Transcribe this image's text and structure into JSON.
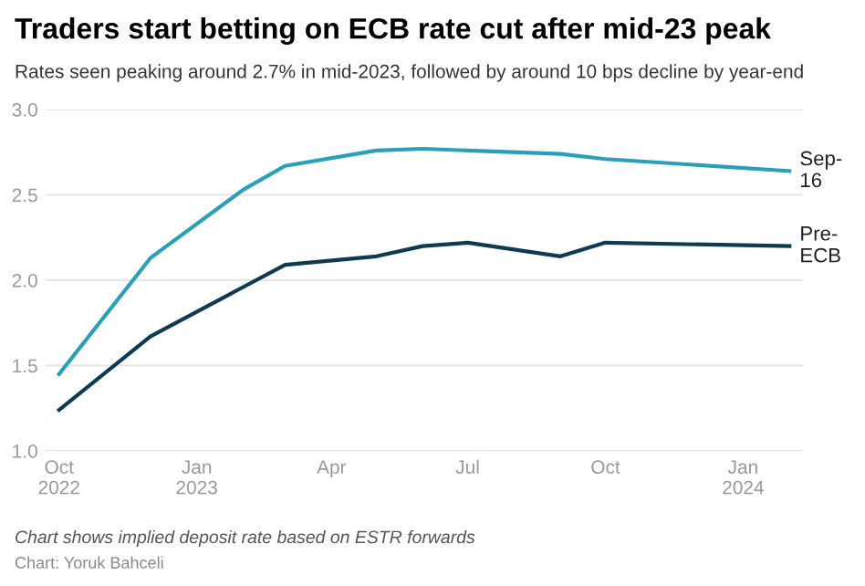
{
  "chart_data": {
    "type": "line",
    "title": "Traders start betting on ECB rate cut after mid-23 peak",
    "subtitle": "Rates seen peaking around 2.7% in mid-2023, followed by around 10 bps decline by year-end",
    "x": [
      "2022-10-01",
      "2022-12-01",
      "2023-02-01",
      "2023-03-01",
      "2023-05-01",
      "2023-06-01",
      "2023-07-01",
      "2023-09-01",
      "2023-10-01",
      "2024-02-01"
    ],
    "series": [
      {
        "name": "Sep-16",
        "color": "#2a9fb8",
        "values": [
          1.45,
          2.13,
          2.53,
          2.67,
          2.76,
          2.77,
          2.76,
          2.74,
          2.71,
          2.64
        ]
      },
      {
        "name": "Pre-ECB",
        "color": "#0e3a52",
        "values": [
          1.24,
          1.67,
          1.96,
          2.09,
          2.14,
          2.2,
          2.22,
          2.14,
          2.22,
          2.2
        ]
      }
    ],
    "xlim": [
      "2022-09-22",
      "2024-02-10"
    ],
    "xticks": [
      {
        "value": "2022-10-01",
        "label": "Oct\n2022"
      },
      {
        "value": "2023-01-01",
        "label": "Jan\n2023"
      },
      {
        "value": "2023-04-01",
        "label": "Apr"
      },
      {
        "value": "2023-07-01",
        "label": "Jul"
      },
      {
        "value": "2023-10-01",
        "label": "Oct"
      },
      {
        "value": "2024-01-01",
        "label": "Jan\n2024"
      }
    ],
    "ylim": [
      1,
      3
    ],
    "yticks": [
      {
        "value": 1,
        "label": "1.0"
      },
      {
        "value": 1.5,
        "label": "1.5"
      },
      {
        "value": 2,
        "label": "2.0"
      },
      {
        "value": 2.5,
        "label": "2.5"
      },
      {
        "value": 3,
        "label": "3.0"
      }
    ],
    "grid": "y",
    "legend": false,
    "annotations": [
      "Chart shows implied deposit rate based on ESTR forwards",
      "Chart: Yoruk Bahceli"
    ]
  }
}
